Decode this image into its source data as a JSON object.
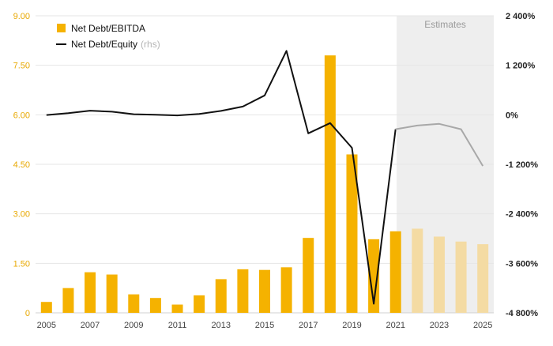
{
  "chart_data": {
    "type": "bar",
    "x": [
      2005,
      2006,
      2007,
      2008,
      2009,
      2010,
      2011,
      2012,
      2013,
      2014,
      2015,
      2016,
      2017,
      2018,
      2019,
      2020,
      2021,
      2022,
      2023,
      2024,
      2025
    ],
    "x_tick_labels": [
      "2005",
      "2007",
      "2009",
      "2011",
      "2013",
      "2015",
      "2017",
      "2019",
      "2021",
      "2023",
      "2025"
    ],
    "estimates_from": 2022,
    "estimates_label": "Estimates",
    "series": [
      {
        "name": "Net Debt/EBITDA",
        "kind": "bar",
        "axis": "left",
        "values": [
          0.33,
          0.75,
          1.23,
          1.16,
          0.56,
          0.45,
          0.25,
          0.53,
          1.02,
          1.32,
          1.3,
          1.38,
          2.27,
          7.8,
          4.8,
          2.23,
          2.47,
          2.55,
          2.31,
          2.16,
          2.08
        ]
      },
      {
        "name": "Net Debt/Equity",
        "name_suffix": "(rhs)",
        "kind": "line",
        "axis": "right",
        "values": [
          -5,
          40,
          100,
          75,
          15,
          0,
          -15,
          20,
          95,
          200,
          470,
          1550,
          -450,
          -200,
          -800,
          -4580,
          -350,
          -260,
          -220,
          -350,
          -1240
        ]
      }
    ],
    "y_left": {
      "ylim": [
        0,
        9
      ],
      "ticks": [
        0,
        1.5,
        3,
        4.5,
        6,
        7.5,
        9
      ],
      "tick_labels": [
        "0",
        "1.50",
        "3.00",
        "4.50",
        "6.00",
        "7.50",
        "9.00"
      ]
    },
    "y_right": {
      "ylim": [
        -4800,
        2400
      ],
      "ticks": [
        -4800,
        -3600,
        -2400,
        -1200,
        0,
        1200,
        2400
      ],
      "tick_labels": [
        "-4 800%",
        "-3 600%",
        "-2 400%",
        "-1 200%",
        "0%",
        "1 200%",
        "2 400%"
      ]
    },
    "grid": true,
    "legend": "top-left",
    "colors": {
      "bar": "#f5b200",
      "bar_estimate": "#f4dba3",
      "line": "#111111",
      "line_estimate": "#a8a8a8",
      "estimates_band": "#eeeeee",
      "grid": "#e6e6e6"
    }
  }
}
